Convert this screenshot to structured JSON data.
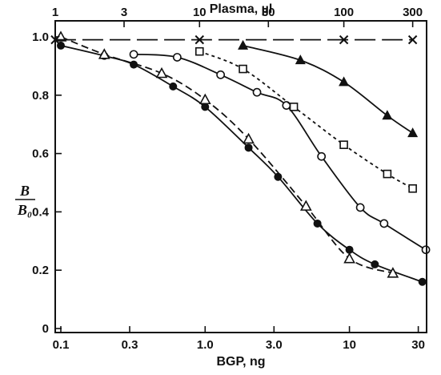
{
  "chart_data": {
    "type": "scatter",
    "title": "",
    "xlabel": "BGP, ng",
    "x2label": "Plasma, µl",
    "ylabel_numerator": "B",
    "ylabel_denominator": "B₀",
    "xscale": "log",
    "xlim": [
      0.1,
      35
    ],
    "ylim": [
      0,
      1.0
    ],
    "grid": false,
    "x_ticks": [
      {
        "value": 0.1,
        "label": "0.1"
      },
      {
        "value": 0.3,
        "label": "0.3"
      },
      {
        "value": 1.0,
        "label": "1.0"
      },
      {
        "value": 3.0,
        "label": "3.0"
      },
      {
        "value": 10,
        "label": "10"
      },
      {
        "value": 30,
        "label": "30"
      }
    ],
    "x2_ticks": [
      {
        "value": 1,
        "label": "1"
      },
      {
        "value": 3,
        "label": "3"
      },
      {
        "value": 10,
        "label": "10"
      },
      {
        "value": 30,
        "label": "30"
      },
      {
        "value": 100,
        "label": "100"
      },
      {
        "value": 300,
        "label": "300"
      }
    ],
    "y_ticks": [
      {
        "value": 0,
        "label": "0"
      },
      {
        "value": 0.2,
        "label": "0.2"
      },
      {
        "value": 0.4,
        "label": "0.4"
      },
      {
        "value": 0.6,
        "label": "0.6"
      },
      {
        "value": 0.8,
        "label": "0.8"
      },
      {
        "value": 1.0,
        "label": "1.0"
      }
    ],
    "series": [
      {
        "marker": "filled-circle",
        "line": "solid",
        "axis": "bottom",
        "x": [
          0.1,
          0.2,
          0.32,
          0.6,
          1.0,
          2.0,
          3.2,
          6.0,
          10,
          15,
          32
        ],
        "y": [
          0.97,
          0.935,
          0.905,
          0.83,
          0.76,
          0.62,
          0.52,
          0.36,
          0.27,
          0.22,
          0.16
        ]
      },
      {
        "marker": "open-triangle",
        "line": "dashed",
        "axis": "bottom",
        "x": [
          0.1,
          0.2,
          0.5,
          1.0,
          2.0,
          5.0,
          10,
          20
        ],
        "y": [
          1.0,
          0.94,
          0.875,
          0.785,
          0.65,
          0.42,
          0.24,
          0.19
        ]
      },
      {
        "marker": "cross",
        "line": "long-dash",
        "axis": "top",
        "x": [
          1,
          10,
          100,
          300
        ],
        "y": [
          0.99,
          0.99,
          0.99,
          0.99
        ]
      },
      {
        "marker": "open-circle",
        "line": "solid",
        "axis": "top",
        "x": [
          3.5,
          7,
          14,
          25,
          40,
          70,
          130,
          190,
          370
        ],
        "y": [
          0.94,
          0.93,
          0.87,
          0.81,
          0.765,
          0.59,
          0.415,
          0.36,
          0.27
        ]
      },
      {
        "marker": "open-square",
        "line": "dotted",
        "axis": "top",
        "x": [
          10,
          20,
          45,
          100,
          200,
          300
        ],
        "y": [
          0.95,
          0.89,
          0.76,
          0.63,
          0.53,
          0.48
        ]
      },
      {
        "marker": "filled-triangle",
        "line": "solid",
        "axis": "top",
        "x": [
          20,
          50,
          100,
          200,
          300
        ],
        "y": [
          0.97,
          0.92,
          0.845,
          0.73,
          0.67
        ]
      }
    ]
  }
}
